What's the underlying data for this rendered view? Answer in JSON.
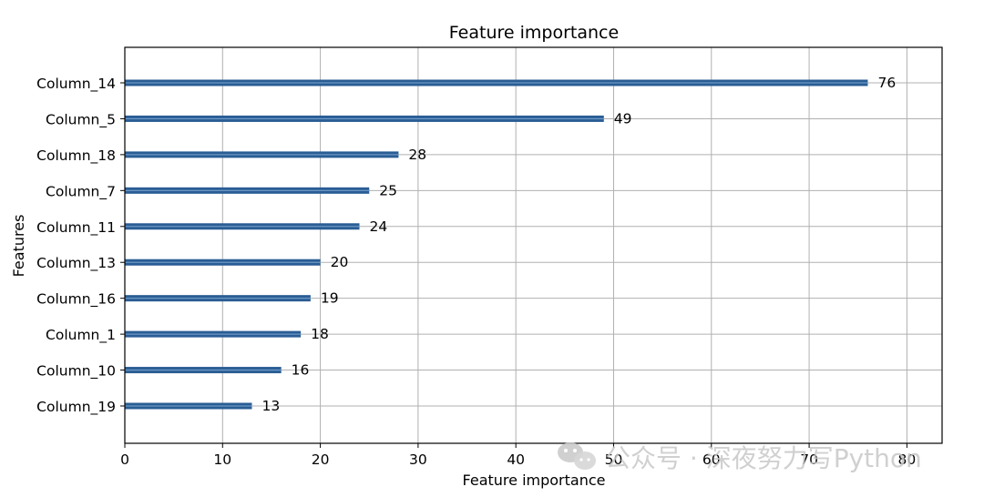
{
  "chart_data": {
    "type": "bar",
    "orientation": "horizontal",
    "title": "Feature importance",
    "xlabel": "Feature importance",
    "ylabel": "Features",
    "categories": [
      "Column_14",
      "Column_5",
      "Column_18",
      "Column_7",
      "Column_11",
      "Column_13",
      "Column_16",
      "Column_1",
      "Column_10",
      "Column_19"
    ],
    "values": [
      76,
      49,
      28,
      25,
      24,
      20,
      19,
      18,
      16,
      13
    ],
    "data_labels": [
      "76",
      "49",
      "28",
      "25",
      "24",
      "20",
      "19",
      "18",
      "16",
      "13"
    ],
    "xlim": [
      0,
      83.6
    ],
    "xticks": [
      0,
      10,
      20,
      30,
      40,
      50,
      60,
      70,
      80
    ],
    "grid": true,
    "bar_color": "#2a5d94",
    "bar_highlight_color": "#6f9bc7"
  },
  "watermark": {
    "text": "公众号 · 深夜努力写Python",
    "icon": "wechat-icon"
  }
}
